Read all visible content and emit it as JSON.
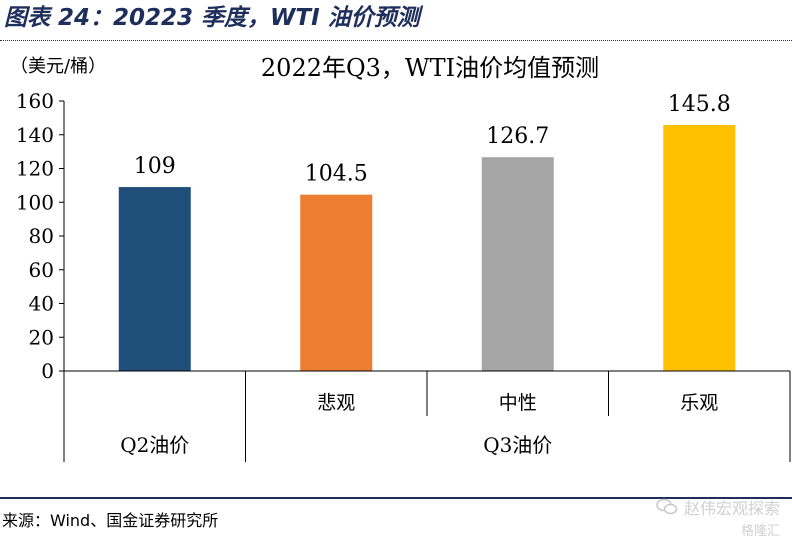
{
  "figure": {
    "title": "图表 24：20223 季度，WTI 油价预测",
    "source": "来源：Wind、国金证券研究所"
  },
  "watermark": {
    "account": "赵伟宏观探索",
    "brand": "格隆汇",
    "icon": "wechat-icon",
    "color": "#d0d0d0"
  },
  "chart_data": {
    "type": "bar",
    "title": "2022年Q3，WTI油价均值预测",
    "ylabel": "（美元/桶）",
    "ylim": [
      0,
      160
    ],
    "yticks": [
      0,
      20,
      40,
      60,
      80,
      100,
      120,
      140,
      160
    ],
    "grid": false,
    "legend": "none",
    "categories": [
      "",
      "悲观",
      "中性",
      "乐观"
    ],
    "groups": [
      {
        "label": "Q2油价",
        "span": 1
      },
      {
        "label": "Q3油价",
        "span": 3
      }
    ],
    "values": [
      109,
      104.5,
      126.7,
      145.8
    ],
    "value_labels": [
      "109",
      "104.5",
      "126.7",
      "145.8"
    ],
    "colors": [
      "#1f4e79",
      "#ed7d31",
      "#a5a5a5",
      "#ffc000"
    ]
  }
}
